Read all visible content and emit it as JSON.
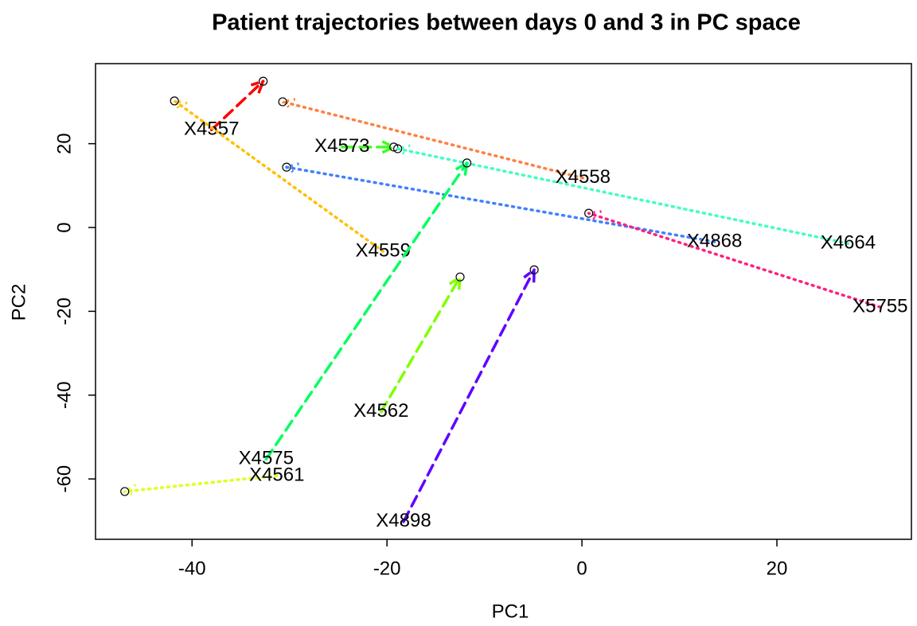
{
  "chart_data": {
    "type": "arrows",
    "title": "Patient trajectories between days 0 and 3 in PC space",
    "x_label": "PC1",
    "y_label": "PC2",
    "xlim": [
      -49.9,
      33.8
    ],
    "ylim": [
      -74.4,
      39.1
    ],
    "xticks": [
      -40,
      -20,
      0,
      20
    ],
    "yticks": [
      -60,
      -40,
      -20,
      0,
      20
    ],
    "series": [
      {
        "name": "X4557",
        "color": "#ff0000",
        "line_style": "dashed",
        "x": [
          -38.0,
          -32.7
        ],
        "values": [
          23.3,
          34.9
        ]
      },
      {
        "name": "X4559",
        "color": "#ffbf00",
        "line_style": "dotted",
        "x": [
          -20.4,
          -41.8
        ],
        "values": [
          -5.7,
          30.2
        ]
      },
      {
        "name": "X4558",
        "color": "#ff8040",
        "line_style": "dotted",
        "x": [
          0.1,
          -30.7
        ],
        "values": [
          11.8,
          30.0
        ]
      },
      {
        "name": "X4573",
        "color": "#40ff20",
        "line_style": "dashed",
        "x": [
          -24.6,
          -19.3
        ],
        "values": [
          19.2,
          19.2
        ]
      },
      {
        "name": "X4664",
        "color": "#40ffc0",
        "line_style": "dotted",
        "x": [
          27.3,
          -18.9
        ],
        "values": [
          -3.8,
          18.8
        ]
      },
      {
        "name": "X4868",
        "color": "#4080ff",
        "line_style": "dotted",
        "x": [
          13.6,
          -30.3
        ],
        "values": [
          -3.4,
          14.4
        ]
      },
      {
        "name": "X5755",
        "color": "#ff2080",
        "line_style": "dotted",
        "x": [
          30.6,
          0.7
        ],
        "values": [
          -19.0,
          3.4
        ]
      },
      {
        "name": "X4562",
        "color": "#80ff00",
        "line_style": "dashed",
        "x": [
          -20.6,
          -12.5
        ],
        "values": [
          -44.0,
          -11.8
        ]
      },
      {
        "name": "X4575",
        "color": "#00ff60",
        "line_style": "dashed",
        "x": [
          -32.4,
          -11.8
        ],
        "values": [
          -55.3,
          15.4
        ]
      },
      {
        "name": "X4561",
        "color": "#e0ff20",
        "line_style": "dotted",
        "x": [
          -31.3,
          -46.9
        ],
        "values": [
          -59.2,
          -63.0
        ]
      },
      {
        "name": "X4898",
        "color": "#6000ff",
        "line_style": "dashed",
        "x": [
          -18.3,
          -4.9
        ],
        "values": [
          -70.2,
          -10.1
        ]
      }
    ]
  }
}
